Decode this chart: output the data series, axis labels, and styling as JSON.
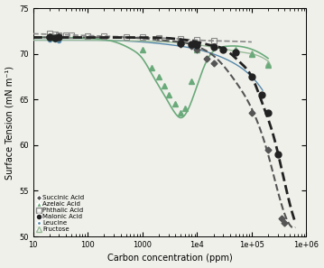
{
  "title": "",
  "xlabel": "Carbon concentration (ppm)",
  "ylabel": "Surface Tension (mN m⁻¹)",
  "xlim": [
    10,
    1000000
  ],
  "ylim": [
    50,
    75
  ],
  "yticks": [
    50,
    55,
    60,
    65,
    70,
    75
  ],
  "background_color": "#f0f0eb",
  "succinic_acid": {
    "x": [
      20,
      25,
      30,
      5000,
      8000,
      10000,
      15000,
      20000,
      100000,
      200000,
      350000,
      400000
    ],
    "y": [
      71.8,
      71.7,
      71.8,
      71.1,
      70.9,
      70.5,
      69.5,
      69.0,
      63.5,
      59.5,
      52.0,
      51.5
    ],
    "color": "#555555",
    "marker": "D",
    "markersize": 3.5,
    "label": "Succinic Acid"
  },
  "succinic_fit": {
    "log10_x": [
      1.0,
      1.5,
      2.0,
      2.5,
      3.0,
      3.5,
      3.8,
      4.0,
      4.3,
      4.7,
      5.0,
      5.3,
      5.6,
      5.8
    ],
    "y": [
      71.8,
      71.8,
      71.8,
      71.8,
      71.7,
      71.4,
      71.2,
      70.8,
      69.8,
      67.0,
      64.0,
      59.0,
      52.5,
      51.0
    ],
    "color": "#555555",
    "linestyle": "--",
    "linewidth": 1.5
  },
  "azelaic_acid": {
    "x": [
      20,
      25,
      1000,
      1500,
      2000,
      2500,
      3000,
      4000,
      5000,
      6000,
      8000,
      10000,
      50000,
      100000,
      200000
    ],
    "y": [
      71.8,
      71.7,
      70.5,
      68.5,
      67.5,
      66.5,
      65.5,
      64.5,
      63.5,
      64.0,
      67.0,
      70.5,
      70.5,
      70.0,
      68.8
    ],
    "color": "#6aaa7a",
    "marker": "^",
    "markersize": 4.5,
    "label": "Azelaic Acid"
  },
  "azelaic_fit": {
    "log10_x": [
      1.0,
      1.5,
      2.0,
      2.5,
      2.8,
      3.0,
      3.2,
      3.4,
      3.6,
      3.7,
      3.8,
      4.0,
      4.2,
      4.5,
      5.0,
      5.3
    ],
    "y": [
      71.8,
      71.8,
      71.7,
      71.3,
      70.5,
      69.5,
      67.5,
      65.5,
      63.5,
      63.0,
      63.5,
      66.5,
      69.5,
      70.8,
      70.5,
      69.5
    ],
    "color": "#6aaa7a",
    "linestyle": "-",
    "linewidth": 1.2
  },
  "phthalic_acid": {
    "x": [
      20,
      25,
      30,
      40,
      50,
      100,
      200,
      500,
      1000,
      2000,
      5000,
      10000,
      20000
    ],
    "y": [
      72.2,
      72.1,
      72.0,
      72.0,
      72.0,
      71.9,
      71.9,
      71.8,
      71.8,
      71.7,
      71.6,
      71.5,
      71.4
    ],
    "color": "#888888",
    "marker": "s",
    "markersize": 4.5,
    "label": "Phthalic Acid",
    "markerfacecolor": "none"
  },
  "phthalic_fit": {
    "log10_x": [
      1.0,
      1.5,
      2.0,
      2.5,
      3.0,
      3.5,
      4.0,
      4.5,
      5.0
    ],
    "y": [
      72.2,
      72.1,
      72.0,
      71.9,
      71.8,
      71.7,
      71.5,
      71.4,
      71.3
    ],
    "color": "#888888",
    "linestyle": "--",
    "linewidth": 1.2
  },
  "malonic_acid": {
    "x": [
      20,
      25,
      30,
      5000,
      8000,
      10000,
      20000,
      30000,
      50000,
      100000,
      150000,
      200000,
      300000
    ],
    "y": [
      71.8,
      71.7,
      71.8,
      71.2,
      71.1,
      71.0,
      70.8,
      70.5,
      70.2,
      67.5,
      65.5,
      63.5,
      59.0
    ],
    "color": "#222222",
    "marker": "o",
    "markersize": 5,
    "label": "Malonic Acid"
  },
  "malonic_fit": {
    "log10_x": [
      1.0,
      1.5,
      2.0,
      2.5,
      3.0,
      3.5,
      3.8,
      4.0,
      4.2,
      4.5,
      4.8,
      5.0,
      5.2,
      5.4,
      5.6,
      5.8
    ],
    "y": [
      71.8,
      71.8,
      71.8,
      71.8,
      71.8,
      71.7,
      71.5,
      71.3,
      71.0,
      70.5,
      69.0,
      67.5,
      64.5,
      61.0,
      56.0,
      51.5
    ],
    "color": "#222222",
    "linestyle": "--",
    "linewidth": 2.0
  },
  "leucine": {
    "x": [
      20,
      25,
      30
    ],
    "y": [
      71.5,
      71.5,
      71.4
    ],
    "color": "#5588aa",
    "marker": "o",
    "markersize": 3,
    "label": "Leucine"
  },
  "leucine_fit": {
    "log10_x": [
      1.0,
      2.0,
      3.0,
      3.5,
      4.0,
      4.5,
      4.8,
      5.0,
      5.2
    ],
    "y": [
      71.5,
      71.5,
      71.3,
      71.0,
      70.5,
      69.5,
      68.5,
      67.5,
      66.0
    ],
    "color": "#5588aa",
    "linestyle": "-",
    "linewidth": 1.0
  },
  "fructose": {
    "x": [
      50000,
      100000,
      200000
    ],
    "y": [
      70.3,
      70.1,
      69.0
    ],
    "color": "#99bb99",
    "marker": "^",
    "markersize": 4,
    "label": "Fructose",
    "markerfacecolor": "none"
  },
  "fructose_fit": {
    "log10_x": [
      1.0,
      2.0,
      3.0,
      4.0,
      4.5,
      4.8,
      5.0,
      5.3
    ],
    "y": [
      71.5,
      71.5,
      71.4,
      71.0,
      70.5,
      70.2,
      70.0,
      69.2
    ],
    "color": "#99bb99",
    "linestyle": "-",
    "linewidth": 1.0
  }
}
